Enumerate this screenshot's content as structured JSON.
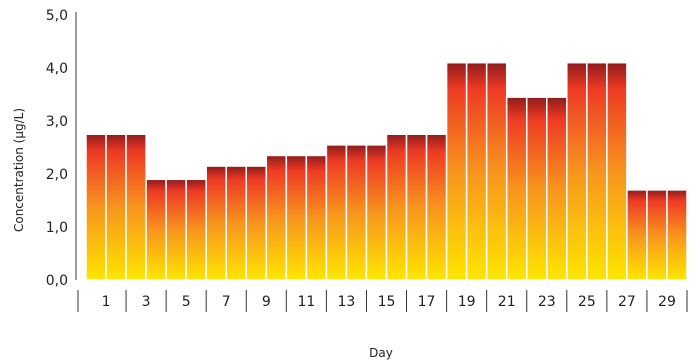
{
  "chart_data": {
    "type": "bar",
    "title": "",
    "xlabel": "Day",
    "ylabel": "Concentration (µg/L)",
    "ylim": [
      0,
      5
    ],
    "yticks": [
      "0,0",
      "1,0",
      "2,0",
      "3,0",
      "4,0",
      "5,0"
    ],
    "xtick_labels": [
      "1",
      "3",
      "5",
      "7",
      "9",
      "11",
      "13",
      "15",
      "17",
      "19",
      "21",
      "23",
      "25",
      "27",
      "29"
    ],
    "x": [
      1,
      2,
      3,
      4,
      5,
      6,
      7,
      8,
      9,
      10,
      11,
      12,
      13,
      14,
      15,
      16,
      17,
      18,
      19,
      20,
      21,
      22,
      23,
      24,
      25,
      26,
      27,
      28,
      29,
      30
    ],
    "values": [
      2.75,
      2.75,
      2.75,
      1.9,
      1.9,
      1.9,
      2.15,
      2.15,
      2.15,
      2.35,
      2.35,
      2.35,
      2.55,
      2.55,
      2.55,
      2.75,
      2.75,
      2.75,
      4.1,
      4.1,
      4.1,
      3.45,
      3.45,
      3.45,
      4.1,
      4.1,
      4.1,
      1.7,
      1.7,
      1.7
    ],
    "grid": false,
    "legend": "none",
    "colors": {
      "bottom": "#ffe600",
      "mid": "#f7941d",
      "upper": "#ee3a24",
      "top": "#8e1b1b",
      "divider": "#ffffff",
      "axis": "#333333"
    }
  }
}
